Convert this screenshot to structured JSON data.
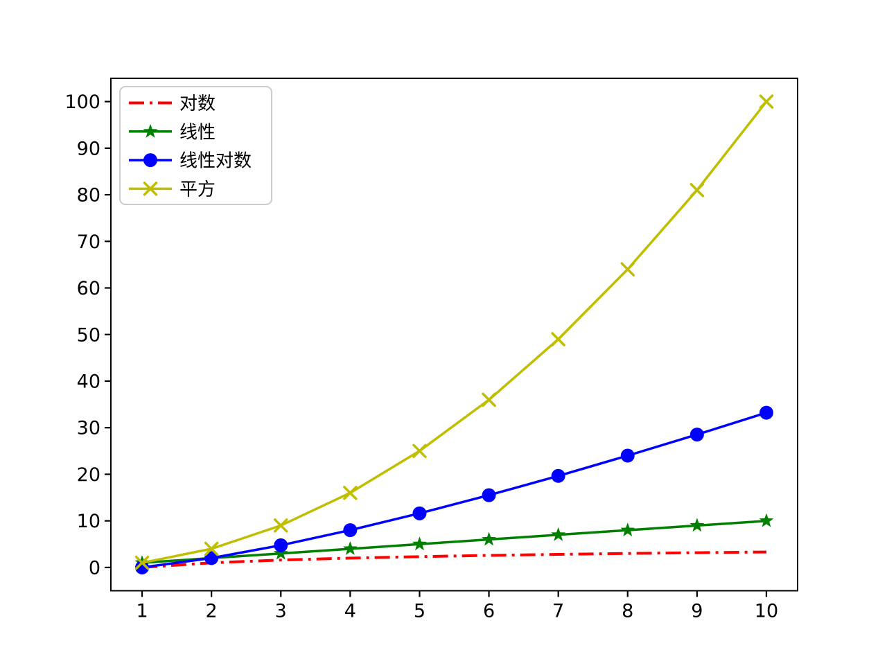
{
  "figure": {
    "background": "#ffffff"
  },
  "chart_data": {
    "type": "line",
    "title": "",
    "xlabel": "",
    "ylabel": "",
    "x": [
      1,
      2,
      3,
      4,
      5,
      6,
      7,
      8,
      9,
      10
    ],
    "series": [
      {
        "id": "log",
        "name": "对数",
        "color": "#ff0000",
        "linestyle": "dashdot",
        "marker": "none",
        "values": [
          0.0,
          1.0,
          1.585,
          2.0,
          2.322,
          2.585,
          2.807,
          3.0,
          3.17,
          3.322
        ]
      },
      {
        "id": "linear",
        "name": "线性",
        "color": "#008000",
        "linestyle": "solid",
        "marker": "star",
        "values": [
          1,
          2,
          3,
          4,
          5,
          6,
          7,
          8,
          9,
          10
        ]
      },
      {
        "id": "linearithmic",
        "name": "线性对数",
        "color": "#0000ff",
        "linestyle": "solid",
        "marker": "circle",
        "values": [
          0.0,
          2.0,
          4.755,
          8.0,
          11.61,
          15.51,
          19.651,
          24.0,
          28.529,
          33.219
        ]
      },
      {
        "id": "square",
        "name": "平方",
        "color": "#bfbf00",
        "linestyle": "solid",
        "marker": "x",
        "values": [
          1,
          4,
          9,
          16,
          25,
          36,
          49,
          64,
          81,
          100
        ]
      }
    ],
    "xticks": [
      "1",
      "2",
      "3",
      "4",
      "5",
      "6",
      "7",
      "8",
      "9",
      "10"
    ],
    "yticks": [
      "0",
      "10",
      "20",
      "30",
      "40",
      "50",
      "60",
      "70",
      "80",
      "90",
      "100"
    ],
    "xlim": [
      0.55,
      10.45
    ],
    "ylim": [
      -5,
      105
    ],
    "grid": false,
    "legend_position": "upper left",
    "axis_color": "#000000",
    "legend_border_color": "#cccccc",
    "legend_background": "#ffffff"
  }
}
